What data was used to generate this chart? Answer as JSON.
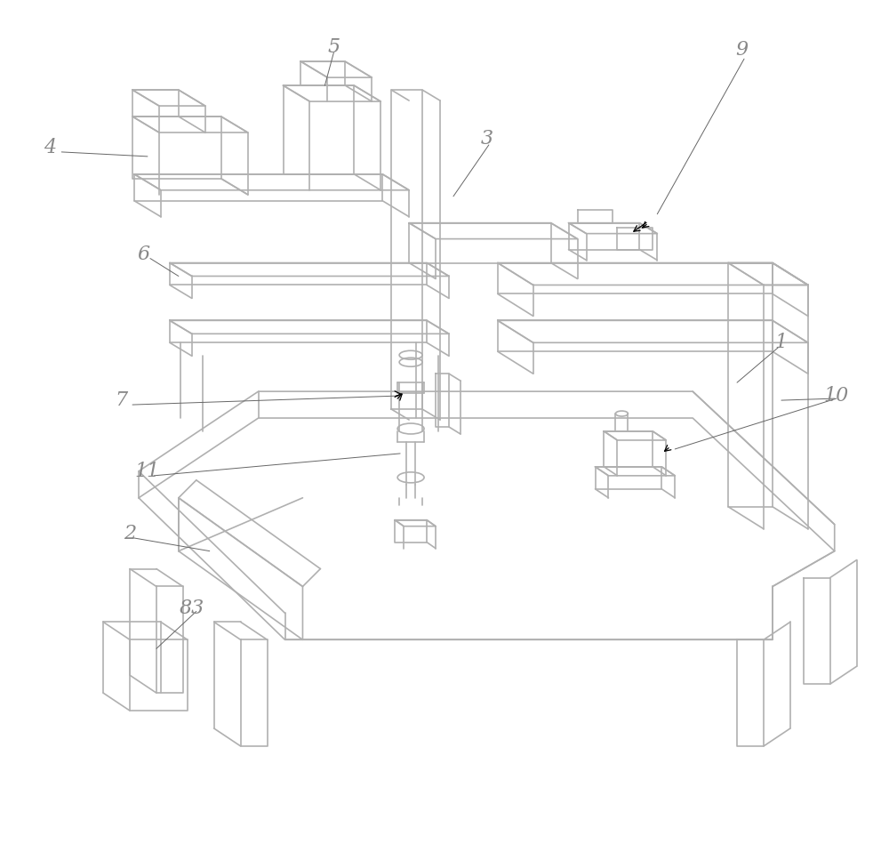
{
  "bg_color": "#ffffff",
  "line_color": "#b0b0b0",
  "dark_line_color": "#888888",
  "label_color": "#888888",
  "figsize": [
    10.0,
    9.67
  ],
  "dpi": 100
}
